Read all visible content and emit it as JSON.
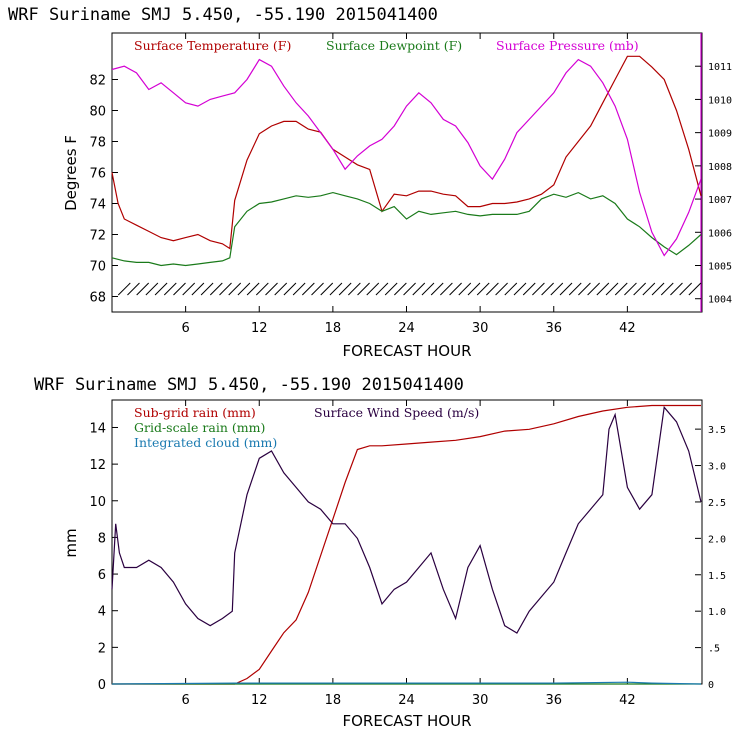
{
  "panel1": {
    "title": "WRF  Suriname SMJ  5.450, -55.190  2015041400",
    "ylabel": "Degrees F",
    "xlabel": "FORECAST HOUR",
    "legend": [
      {
        "label": "Surface Temperature (F)",
        "color": "#b00000"
      },
      {
        "label": "Surface Dewpoint (F)",
        "color": "#1a7a1a"
      },
      {
        "label": "Surface Pressure (mb)",
        "color": "#d400d4"
      }
    ],
    "left_ticks": [
      "68",
      "70",
      "72",
      "74",
      "76",
      "78",
      "80",
      "82"
    ],
    "right_ticks": [
      "1004",
      "1005",
      "1006",
      "1007",
      "1008",
      "1009",
      "1010",
      "1011"
    ],
    "x_ticks": [
      "6",
      "12",
      "18",
      "24",
      "30",
      "36",
      "42"
    ]
  },
  "panel2": {
    "title": "WRF  Suriname SMJ  5.450, -55.190  2015041400",
    "ylabel": "mm",
    "xlabel": "FORECAST HOUR",
    "legend": [
      {
        "label": "Sub-grid rain (mm)",
        "color": "#b00000"
      },
      {
        "label": "Surface Wind Speed (m/s)",
        "color": "#2a0040"
      },
      {
        "label": "Grid-scale rain (mm)",
        "color": "#1a7a1a"
      },
      {
        "label": "Integrated cloud (mm)",
        "color": "#1a7ab0"
      }
    ],
    "left_ticks": [
      "0",
      "2",
      "4",
      "6",
      "8",
      "10",
      "12",
      "14"
    ],
    "right_ticks": [
      "0",
      ".5",
      "1.0",
      "1.5",
      "2.0",
      "2.5",
      "3.0",
      "3.5"
    ],
    "x_ticks": [
      "6",
      "12",
      "18",
      "24",
      "30",
      "36",
      "42"
    ]
  },
  "chart_data": [
    {
      "type": "line",
      "title": "WRF  Suriname SMJ  5.450, -55.190  2015041400",
      "xlabel": "FORECAST HOUR",
      "ylabel": "Degrees F",
      "xlim": [
        0,
        48
      ],
      "ylim": [
        67,
        85
      ],
      "y2lim": [
        1003.6,
        1012.0
      ],
      "grid": false,
      "legend": "top",
      "series": [
        {
          "name": "Surface Temperature (F)",
          "color": "#b00000",
          "axis": "left",
          "x": [
            0,
            0.5,
            1,
            2,
            3,
            4,
            5,
            6,
            7,
            8,
            9,
            9.6,
            10,
            11,
            12,
            13,
            14,
            15,
            16,
            17,
            18,
            19,
            20,
            21,
            22,
            23,
            24,
            25,
            26,
            27,
            28,
            29,
            30,
            31,
            32,
            33,
            34,
            35,
            36,
            37,
            38,
            39,
            40,
            41,
            42,
            43,
            44,
            45,
            46,
            47,
            48
          ],
          "y": [
            76,
            74,
            73,
            72.6,
            72.2,
            71.8,
            71.6,
            71.8,
            72.0,
            71.6,
            71.4,
            71.1,
            74.2,
            76.8,
            78.5,
            79.0,
            79.3,
            79.3,
            78.8,
            78.6,
            77.5,
            77.0,
            76.5,
            76.2,
            73.5,
            74.6,
            74.5,
            74.8,
            74.8,
            74.6,
            74.5,
            73.8,
            73.8,
            74.0,
            74.0,
            74.1,
            74.3,
            74.6,
            75.2,
            77.0,
            78.0,
            79.0,
            80.5,
            82.0,
            83.5,
            83.5,
            82.8,
            82.0,
            80.0,
            77.5,
            74.5
          ]
        },
        {
          "name": "Surface Dewpoint (F)",
          "color": "#1a7a1a",
          "axis": "left",
          "x": [
            0,
            1,
            2,
            3,
            4,
            5,
            6,
            7,
            8,
            9,
            9.6,
            10,
            11,
            12,
            13,
            14,
            15,
            16,
            17,
            18,
            19,
            20,
            21,
            22,
            23,
            24,
            25,
            26,
            27,
            28,
            29,
            30,
            31,
            32,
            33,
            34,
            35,
            36,
            37,
            38,
            39,
            40,
            41,
            42,
            43,
            44,
            45,
            46,
            47,
            48
          ],
          "y": [
            70.5,
            70.3,
            70.2,
            70.2,
            70.0,
            70.1,
            70.0,
            70.1,
            70.2,
            70.3,
            70.5,
            72.5,
            73.5,
            74.0,
            74.1,
            74.3,
            74.5,
            74.4,
            74.5,
            74.7,
            74.5,
            74.3,
            74.0,
            73.5,
            73.8,
            73.0,
            73.5,
            73.3,
            73.4,
            73.5,
            73.3,
            73.2,
            73.3,
            73.3,
            73.3,
            73.5,
            74.3,
            74.6,
            74.4,
            74.7,
            74.3,
            74.5,
            74.0,
            73.0,
            72.5,
            71.8,
            71.2,
            70.7,
            71.3,
            72.0
          ]
        },
        {
          "name": "Surface Pressure (mb)",
          "color": "#d400d4",
          "axis": "right",
          "x": [
            0,
            1,
            2,
            3,
            4,
            5,
            6,
            7,
            8,
            9,
            10,
            11,
            12,
            13,
            14,
            15,
            16,
            17,
            18,
            19,
            20,
            21,
            22,
            23,
            24,
            25,
            26,
            27,
            28,
            29,
            30,
            31,
            32,
            33,
            34,
            35,
            36,
            37,
            38,
            39,
            40,
            41,
            42,
            43,
            44,
            45,
            46,
            47,
            48
          ],
          "y": [
            1010.9,
            1011.0,
            1010.8,
            1010.3,
            1010.5,
            1010.2,
            1009.9,
            1009.8,
            1010.0,
            1010.1,
            1010.2,
            1010.6,
            1011.2,
            1011.0,
            1010.4,
            1009.9,
            1009.5,
            1009.0,
            1008.5,
            1007.9,
            1008.3,
            1008.6,
            1008.8,
            1009.2,
            1009.8,
            1010.2,
            1009.9,
            1009.4,
            1009.2,
            1008.7,
            1008.0,
            1007.6,
            1008.2,
            1009.0,
            1009.4,
            1009.8,
            1010.2,
            1010.8,
            1011.2,
            1011.0,
            1010.5,
            1009.8,
            1008.8,
            1007.2,
            1006.0,
            1005.3,
            1005.8,
            1006.6,
            1007.6
          ]
        }
      ]
    },
    {
      "type": "line",
      "title": "WRF  Suriname SMJ  5.450, -55.190  2015041400",
      "xlabel": "FORECAST HOUR",
      "ylabel": "mm",
      "xlim": [
        0,
        48
      ],
      "ylim": [
        0,
        15.5
      ],
      "y2lim": [
        0,
        3.9
      ],
      "grid": false,
      "legend": "top-left",
      "series": [
        {
          "name": "Sub-grid rain (mm)",
          "color": "#b00000",
          "axis": "left",
          "x": [
            0,
            10,
            11,
            12,
            13,
            14,
            15,
            16,
            17,
            18,
            19,
            20,
            21,
            22,
            24,
            26,
            28,
            30,
            32,
            34,
            36,
            38,
            40,
            42,
            44,
            46,
            48
          ],
          "y": [
            0,
            0,
            0.3,
            0.8,
            1.8,
            2.8,
            3.5,
            5.0,
            7.0,
            9.0,
            11.0,
            12.8,
            13.0,
            13.0,
            13.1,
            13.2,
            13.3,
            13.5,
            13.8,
            13.9,
            14.2,
            14.6,
            14.9,
            15.1,
            15.2,
            15.2,
            15.2
          ]
        },
        {
          "name": "Surface Wind Speed (m/s)",
          "color": "#2a0040",
          "axis": "right",
          "x": [
            0,
            0.3,
            0.6,
            1,
            2,
            3,
            4,
            5,
            6,
            7,
            8,
            9,
            9.8,
            10,
            11,
            12,
            13,
            14,
            15,
            16,
            17,
            18,
            19,
            20,
            21,
            22,
            23,
            24,
            25,
            26,
            27,
            28,
            29,
            30,
            31,
            32,
            33,
            34,
            35,
            36,
            37,
            38,
            39,
            40,
            40.5,
            41,
            42,
            43,
            44,
            45,
            46,
            47,
            48
          ],
          "y": [
            1.3,
            2.2,
            1.8,
            1.6,
            1.6,
            1.7,
            1.6,
            1.4,
            1.1,
            0.9,
            0.8,
            0.9,
            1.0,
            1.8,
            2.6,
            3.1,
            3.2,
            2.9,
            2.7,
            2.5,
            2.4,
            2.2,
            2.2,
            2.0,
            1.6,
            1.1,
            1.3,
            1.4,
            1.6,
            1.8,
            1.3,
            0.9,
            1.6,
            1.9,
            1.3,
            0.8,
            0.7,
            1.0,
            1.2,
            1.4,
            1.8,
            2.2,
            2.4,
            2.6,
            3.5,
            3.7,
            2.7,
            2.4,
            2.6,
            3.8,
            3.6,
            3.2,
            2.5
          ]
        },
        {
          "name": "Grid-scale rain (mm)",
          "color": "#1a7a1a",
          "axis": "left",
          "x": [
            0,
            48
          ],
          "y": [
            0,
            0
          ]
        },
        {
          "name": "Integrated cloud (mm)",
          "color": "#1a7ab0",
          "axis": "left",
          "x": [
            0,
            10,
            24,
            36,
            42,
            44,
            48
          ],
          "y": [
            0,
            0.05,
            0.05,
            0.05,
            0.1,
            0.05,
            0
          ]
        }
      ]
    }
  ]
}
